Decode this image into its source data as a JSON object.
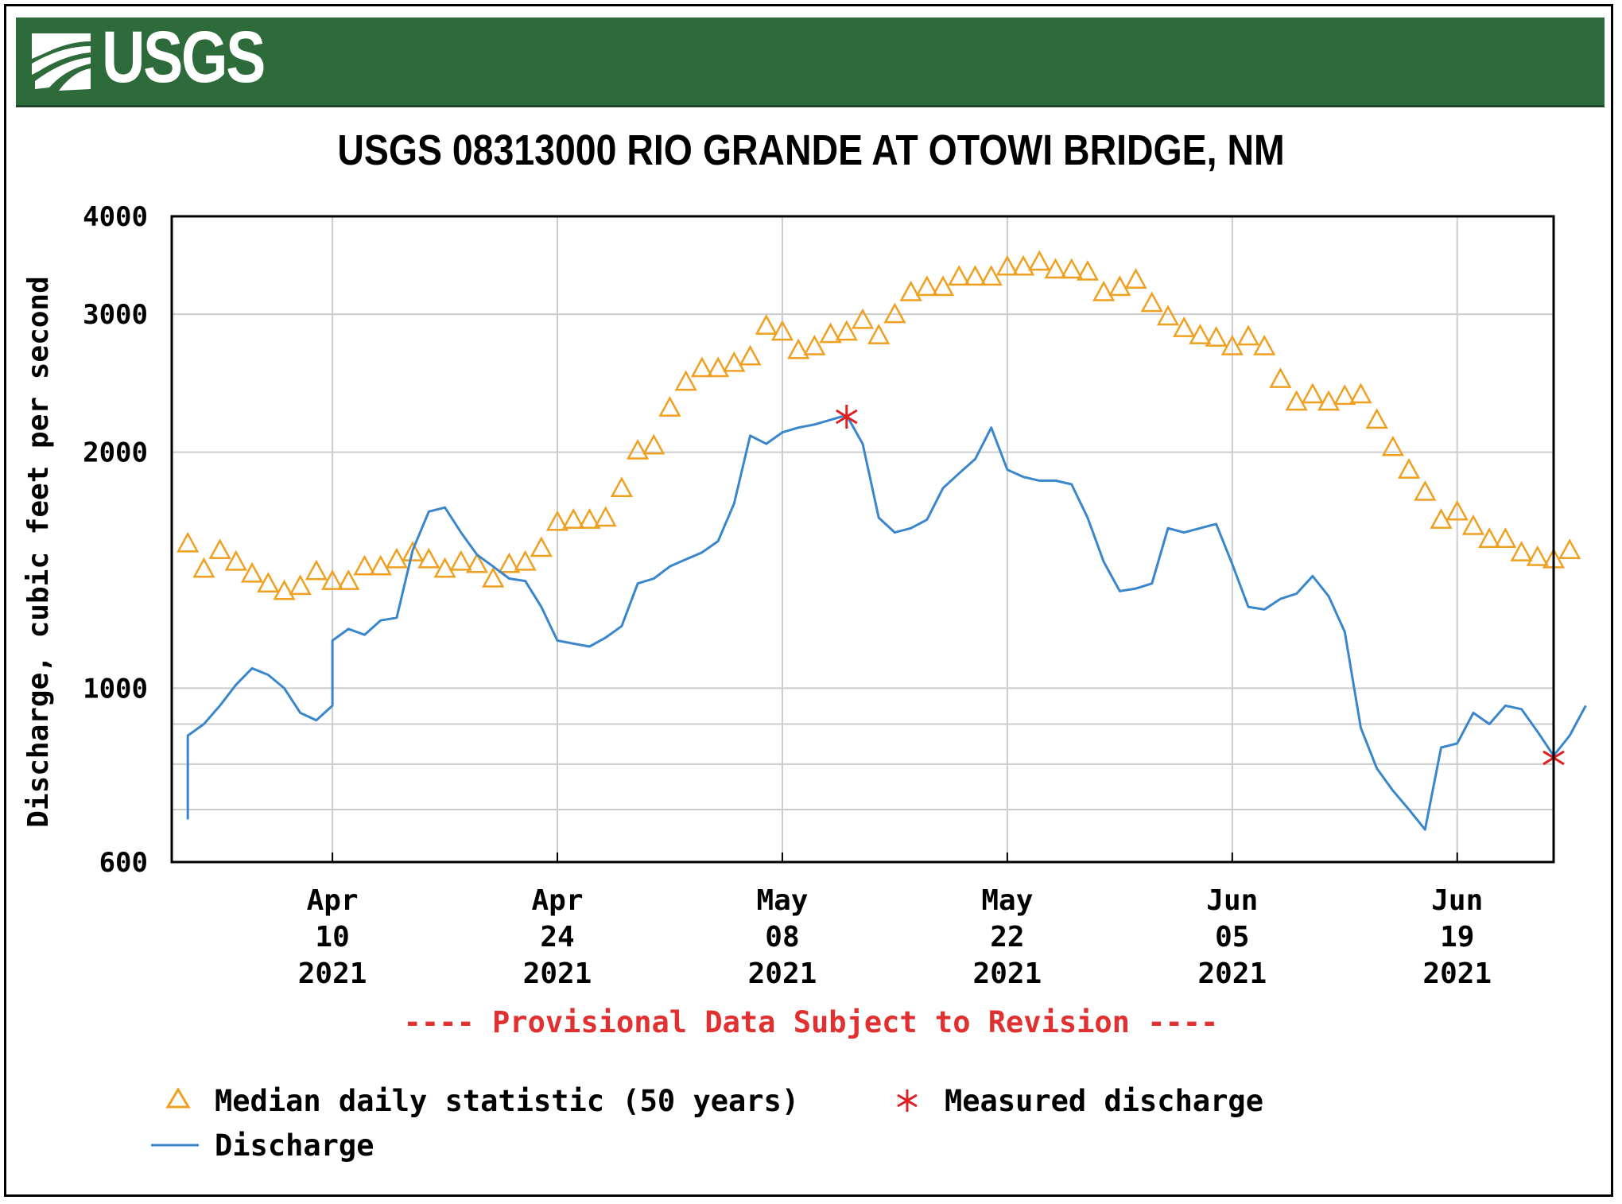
{
  "banner": {
    "logo_text": "USGS",
    "color": "#2e6b3a"
  },
  "chart_data": {
    "type": "line",
    "title": "USGS 08313000 RIO GRANDE AT OTOWI BRIDGE, NM",
    "ylabel": "Discharge, cubic feet per second",
    "xlabel": "",
    "yscale": "log",
    "ylim": [
      600,
      4000
    ],
    "xlim": [
      "2021-03-31",
      "2021-06-25"
    ],
    "y_ticks": [
      "4000",
      "3000",
      "2000",
      "1000",
      "600"
    ],
    "y_tick_values": [
      4000,
      3000,
      2000,
      1000,
      600
    ],
    "x_ticks": [
      {
        "date": "2021-04-10",
        "lines": [
          "Apr",
          "10",
          "2021"
        ]
      },
      {
        "date": "2021-04-24",
        "lines": [
          "Apr",
          "24",
          "2021"
        ]
      },
      {
        "date": "2021-05-08",
        "lines": [
          "May",
          "08",
          "2021"
        ]
      },
      {
        "date": "2021-05-22",
        "lines": [
          "May",
          "22",
          "2021"
        ]
      },
      {
        "date": "2021-06-05",
        "lines": [
          "Jun",
          "05",
          "2021"
        ]
      },
      {
        "date": "2021-06-19",
        "lines": [
          "Jun",
          "19",
          "2021"
        ]
      }
    ],
    "grid": true,
    "notice": "---- Provisional Data Subject to Revision ----",
    "legend": {
      "placement": "bottom",
      "median_label": "Median daily statistic (50 years)",
      "measured_label": "Measured discharge",
      "discharge_label": "Discharge"
    },
    "colors": {
      "median": "#f0a020",
      "discharge": "#3a86cc",
      "measured": "#e02020",
      "notice": "#e03030"
    },
    "series": [
      {
        "name": "Median daily statistic (50 years)",
        "marker": "triangle",
        "points": [
          [
            "2021-04-01",
            1530
          ],
          [
            "2021-04-02",
            1420
          ],
          [
            "2021-04-03",
            1500
          ],
          [
            "2021-04-04",
            1450
          ],
          [
            "2021-04-05",
            1400
          ],
          [
            "2021-04-06",
            1360
          ],
          [
            "2021-04-07",
            1330
          ],
          [
            "2021-04-08",
            1350
          ],
          [
            "2021-04-09",
            1410
          ],
          [
            "2021-04-10",
            1370
          ],
          [
            "2021-04-11",
            1370
          ],
          [
            "2021-04-12",
            1430
          ],
          [
            "2021-04-13",
            1430
          ],
          [
            "2021-04-14",
            1460
          ],
          [
            "2021-04-15",
            1490
          ],
          [
            "2021-04-16",
            1460
          ],
          [
            "2021-04-17",
            1420
          ],
          [
            "2021-04-18",
            1450
          ],
          [
            "2021-04-19",
            1440
          ],
          [
            "2021-04-20",
            1380
          ],
          [
            "2021-04-21",
            1440
          ],
          [
            "2021-04-22",
            1450
          ],
          [
            "2021-04-23",
            1510
          ],
          [
            "2021-04-24",
            1630
          ],
          [
            "2021-04-25",
            1640
          ],
          [
            "2021-04-26",
            1640
          ],
          [
            "2021-04-27",
            1650
          ],
          [
            "2021-04-28",
            1800
          ],
          [
            "2021-04-29",
            2010
          ],
          [
            "2021-04-30",
            2040
          ],
          [
            "2021-05-01",
            2280
          ],
          [
            "2021-05-02",
            2460
          ],
          [
            "2021-05-03",
            2560
          ],
          [
            "2021-05-04",
            2560
          ],
          [
            "2021-05-05",
            2600
          ],
          [
            "2021-05-06",
            2650
          ],
          [
            "2021-05-07",
            2900
          ],
          [
            "2021-05-08",
            2850
          ],
          [
            "2021-05-09",
            2700
          ],
          [
            "2021-05-10",
            2730
          ],
          [
            "2021-05-11",
            2830
          ],
          [
            "2021-05-12",
            2850
          ],
          [
            "2021-05-13",
            2950
          ],
          [
            "2021-05-14",
            2820
          ],
          [
            "2021-05-15",
            3000
          ],
          [
            "2021-05-16",
            3200
          ],
          [
            "2021-05-17",
            3250
          ],
          [
            "2021-05-18",
            3250
          ],
          [
            "2021-05-19",
            3350
          ],
          [
            "2021-05-20",
            3350
          ],
          [
            "2021-05-21",
            3350
          ],
          [
            "2021-05-22",
            3450
          ],
          [
            "2021-05-23",
            3450
          ],
          [
            "2021-05-24",
            3500
          ],
          [
            "2021-05-25",
            3420
          ],
          [
            "2021-05-26",
            3420
          ],
          [
            "2021-05-27",
            3400
          ],
          [
            "2021-05-28",
            3200
          ],
          [
            "2021-05-29",
            3250
          ],
          [
            "2021-05-30",
            3320
          ],
          [
            "2021-05-31",
            3100
          ],
          [
            "2021-06-01",
            2980
          ],
          [
            "2021-06-02",
            2880
          ],
          [
            "2021-06-03",
            2820
          ],
          [
            "2021-06-04",
            2800
          ],
          [
            "2021-06-05",
            2730
          ],
          [
            "2021-06-06",
            2810
          ],
          [
            "2021-06-07",
            2730
          ],
          [
            "2021-06-08",
            2480
          ],
          [
            "2021-06-09",
            2320
          ],
          [
            "2021-06-10",
            2370
          ],
          [
            "2021-06-11",
            2320
          ],
          [
            "2021-06-12",
            2360
          ],
          [
            "2021-06-13",
            2370
          ],
          [
            "2021-06-14",
            2200
          ],
          [
            "2021-06-15",
            2030
          ],
          [
            "2021-06-16",
            1900
          ],
          [
            "2021-06-17",
            1780
          ],
          [
            "2021-06-18",
            1640
          ],
          [
            "2021-06-19",
            1680
          ],
          [
            "2021-06-20",
            1610
          ],
          [
            "2021-06-21",
            1550
          ],
          [
            "2021-06-22",
            1550
          ],
          [
            "2021-06-23",
            1490
          ],
          [
            "2021-06-24",
            1470
          ],
          [
            "2021-06-25",
            1460
          ],
          [
            "2021-06-26",
            1500
          ]
        ]
      },
      {
        "name": "Discharge",
        "marker": "line",
        "points": [
          [
            "2021-04-01",
            680
          ],
          [
            "2021-04-01",
            870
          ],
          [
            "2021-04-02",
            900
          ],
          [
            "2021-04-03",
            950
          ],
          [
            "2021-04-04",
            1010
          ],
          [
            "2021-04-05",
            1060
          ],
          [
            "2021-04-06",
            1040
          ],
          [
            "2021-04-07",
            1000
          ],
          [
            "2021-04-08",
            930
          ],
          [
            "2021-04-09",
            910
          ],
          [
            "2021-04-10",
            950
          ],
          [
            "2021-04-10",
            1150
          ],
          [
            "2021-04-11",
            1190
          ],
          [
            "2021-04-12",
            1170
          ],
          [
            "2021-04-13",
            1220
          ],
          [
            "2021-04-14",
            1230
          ],
          [
            "2021-04-15",
            1500
          ],
          [
            "2021-04-16",
            1680
          ],
          [
            "2021-04-17",
            1700
          ],
          [
            "2021-04-18",
            1580
          ],
          [
            "2021-04-19",
            1480
          ],
          [
            "2021-04-20",
            1430
          ],
          [
            "2021-04-21",
            1380
          ],
          [
            "2021-04-22",
            1370
          ],
          [
            "2021-04-23",
            1270
          ],
          [
            "2021-04-24",
            1150
          ],
          [
            "2021-04-25",
            1140
          ],
          [
            "2021-04-26",
            1130
          ],
          [
            "2021-04-27",
            1160
          ],
          [
            "2021-04-28",
            1200
          ],
          [
            "2021-04-29",
            1360
          ],
          [
            "2021-04-30",
            1380
          ],
          [
            "2021-05-01",
            1430
          ],
          [
            "2021-05-02",
            1460
          ],
          [
            "2021-05-03",
            1490
          ],
          [
            "2021-05-04",
            1540
          ],
          [
            "2021-05-05",
            1720
          ],
          [
            "2021-05-06",
            2100
          ],
          [
            "2021-05-07",
            2050
          ],
          [
            "2021-05-08",
            2120
          ],
          [
            "2021-05-09",
            2150
          ],
          [
            "2021-05-10",
            2170
          ],
          [
            "2021-05-11",
            2200
          ],
          [
            "2021-05-12",
            2230
          ],
          [
            "2021-05-13",
            2050
          ],
          [
            "2021-05-14",
            1650
          ],
          [
            "2021-05-15",
            1580
          ],
          [
            "2021-05-16",
            1600
          ],
          [
            "2021-05-17",
            1640
          ],
          [
            "2021-05-18",
            1800
          ],
          [
            "2021-05-19",
            1880
          ],
          [
            "2021-05-20",
            1960
          ],
          [
            "2021-05-21",
            2150
          ],
          [
            "2021-05-22",
            1900
          ],
          [
            "2021-05-23",
            1860
          ],
          [
            "2021-05-24",
            1840
          ],
          [
            "2021-05-25",
            1840
          ],
          [
            "2021-05-26",
            1820
          ],
          [
            "2021-05-27",
            1650
          ],
          [
            "2021-05-28",
            1450
          ],
          [
            "2021-05-29",
            1330
          ],
          [
            "2021-05-30",
            1340
          ],
          [
            "2021-05-31",
            1360
          ],
          [
            "2021-06-01",
            1600
          ],
          [
            "2021-06-02",
            1580
          ],
          [
            "2021-06-03",
            1600
          ],
          [
            "2021-06-04",
            1620
          ],
          [
            "2021-06-05",
            1440
          ],
          [
            "2021-06-06",
            1270
          ],
          [
            "2021-06-07",
            1260
          ],
          [
            "2021-06-08",
            1300
          ],
          [
            "2021-06-09",
            1320
          ],
          [
            "2021-06-10",
            1390
          ],
          [
            "2021-06-11",
            1310
          ],
          [
            "2021-06-12",
            1180
          ],
          [
            "2021-06-13",
            890
          ],
          [
            "2021-06-14",
            790
          ],
          [
            "2021-06-15",
            740
          ],
          [
            "2021-06-16",
            700
          ],
          [
            "2021-06-17",
            660
          ],
          [
            "2021-06-18",
            840
          ],
          [
            "2021-06-19",
            850
          ],
          [
            "2021-06-20",
            930
          ],
          [
            "2021-06-21",
            900
          ],
          [
            "2021-06-22",
            950
          ],
          [
            "2021-06-23",
            940
          ],
          [
            "2021-06-24",
            880
          ],
          [
            "2021-06-25",
            820
          ],
          [
            "2021-06-26",
            870
          ],
          [
            "2021-06-27",
            950
          ]
        ]
      },
      {
        "name": "Measured discharge",
        "marker": "asterisk",
        "points": [
          [
            "2021-05-12",
            2220
          ],
          [
            "2021-06-25",
            815
          ]
        ]
      }
    ]
  }
}
